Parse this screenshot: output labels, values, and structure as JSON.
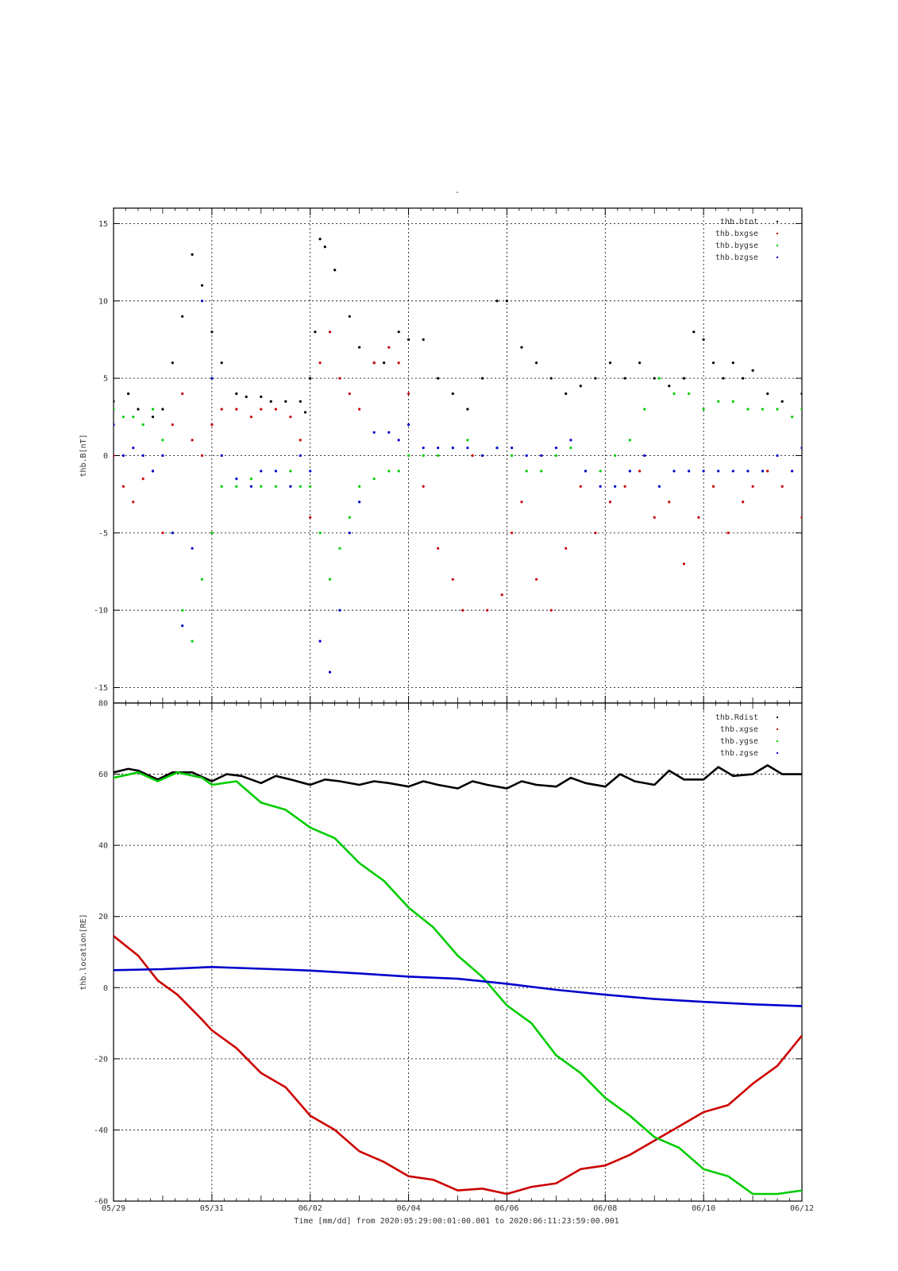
{
  "figure": {
    "title": "-",
    "footer": "Time [mm/dd]  from 2020:05:29:00:01:00.001  to  2020:06:11:23:59:00.001"
  },
  "chart_data": [
    {
      "type": "scatter",
      "ylabel": "thb.B[nT]",
      "xlabel": "",
      "x_ticks": [
        "05/29",
        "05/31",
        "06/02",
        "06/04",
        "06/06",
        "06/08",
        "06/10",
        "06/12"
      ],
      "x_range_days": [
        0,
        14
      ],
      "ylim": [
        -16,
        16
      ],
      "y_ticks": [
        15,
        10,
        5,
        0,
        -5,
        -10,
        -15
      ],
      "grid": true,
      "legend_position": "top-right",
      "colors": {
        "thb.btot": "#000000",
        "thb.bxgse": "#cc0000",
        "thb.bygse": "#00cc00",
        "thb.bzgse": "#0000cc"
      },
      "series": [
        {
          "name": "thb.btot",
          "x": [
            0,
            0.3,
            0.5,
            0.8,
            1.0,
            1.2,
            1.4,
            1.6,
            1.8,
            2.0,
            2.2,
            2.5,
            2.7,
            3.0,
            3.2,
            3.5,
            3.8,
            3.9,
            4.0,
            4.1,
            4.2,
            4.3,
            4.5,
            4.8,
            5.0,
            5.3,
            5.5,
            5.8,
            6.0,
            6.3,
            6.6,
            6.9,
            7.2,
            7.5,
            7.8,
            8.0,
            8.3,
            8.6,
            8.9,
            9.2,
            9.5,
            9.8,
            10.1,
            10.4,
            10.7,
            11.0,
            11.3,
            11.6,
            11.8,
            12.0,
            12.2,
            12.4,
            12.6,
            12.8,
            13.0,
            13.3,
            13.6,
            14.0
          ],
          "y": [
            3.5,
            4,
            3,
            2.5,
            3,
            6,
            9,
            13,
            11,
            8,
            6,
            4,
            3.8,
            3.8,
            3.5,
            3.5,
            3.5,
            2.8,
            5,
            8,
            14,
            13.5,
            12,
            9,
            7,
            6,
            6,
            8,
            7.5,
            7.5,
            5,
            4,
            3,
            5,
            10,
            10,
            7,
            6,
            5,
            4,
            4.5,
            5,
            6,
            5,
            6,
            5,
            4.5,
            5,
            8,
            7.5,
            6,
            5,
            6,
            5,
            5.5,
            4,
            3.5,
            4
          ]
        },
        {
          "name": "thb.bxgse",
          "x": [
            0,
            0.2,
            0.4,
            0.6,
            0.8,
            1.0,
            1.2,
            1.4,
            1.6,
            1.8,
            2.0,
            2.2,
            2.5,
            2.8,
            3.0,
            3.3,
            3.6,
            3.8,
            4.0,
            4.2,
            4.4,
            4.6,
            4.8,
            5.0,
            5.3,
            5.6,
            5.8,
            6.0,
            6.3,
            6.6,
            6.9,
            7.1,
            7.3,
            7.6,
            7.9,
            8.1,
            8.3,
            8.6,
            8.9,
            9.2,
            9.5,
            9.8,
            10.1,
            10.4,
            10.7,
            11.0,
            11.3,
            11.6,
            11.9,
            12.2,
            12.5,
            12.8,
            13.0,
            13.3,
            13.6,
            14.0
          ],
          "y": [
            0,
            -2,
            -3,
            -1.5,
            -1,
            -5,
            2,
            4,
            1,
            0,
            2,
            3,
            3,
            2.5,
            3,
            3,
            2.5,
            1,
            -4,
            6,
            8,
            5,
            4,
            3,
            6,
            7,
            6,
            4,
            -2,
            -6,
            -8,
            -10,
            0,
            -10,
            -9,
            -5,
            -3,
            -8,
            -10,
            -6,
            -2,
            -5,
            -3,
            -2,
            -1,
            -4,
            -3,
            -7,
            -4,
            -2,
            -5,
            -3,
            -2,
            -1,
            -2,
            -4
          ]
        },
        {
          "name": "thb.bygse",
          "x": [
            0,
            0.2,
            0.4,
            0.6,
            0.8,
            1.0,
            1.2,
            1.4,
            1.6,
            1.8,
            2.0,
            2.2,
            2.5,
            2.8,
            3.0,
            3.3,
            3.6,
            3.8,
            4.0,
            4.2,
            4.4,
            4.6,
            4.8,
            5.0,
            5.3,
            5.6,
            5.8,
            6.0,
            6.3,
            6.6,
            6.9,
            7.2,
            7.5,
            7.8,
            8.1,
            8.4,
            8.7,
            9.0,
            9.3,
            9.6,
            9.9,
            10.2,
            10.5,
            10.8,
            11.1,
            11.4,
            11.7,
            12.0,
            12.3,
            12.6,
            12.9,
            13.2,
            13.5,
            13.8,
            14.0
          ],
          "y": [
            3,
            2.5,
            2.5,
            2,
            3,
            1,
            -5,
            -10,
            -12,
            -8,
            -5,
            -2,
            -2,
            -1.5,
            -2,
            -2,
            -1,
            -2,
            -2,
            -5,
            -8,
            -6,
            -4,
            -2,
            -1.5,
            -1,
            -1,
            0,
            0,
            0,
            0.5,
            1,
            0,
            0.5,
            0,
            -1,
            -1,
            0,
            0.5,
            -1,
            -1,
            0,
            1,
            3,
            5,
            4,
            4,
            3,
            3.5,
            3.5,
            3,
            3,
            3,
            2.5,
            3
          ]
        },
        {
          "name": "thb.bzgse",
          "x": [
            0,
            0.2,
            0.4,
            0.6,
            0.8,
            1.0,
            1.2,
            1.4,
            1.6,
            1.8,
            2.0,
            2.2,
            2.5,
            2.8,
            3.0,
            3.3,
            3.6,
            3.8,
            4.0,
            4.2,
            4.4,
            4.6,
            4.8,
            5.0,
            5.3,
            5.6,
            5.8,
            6.0,
            6.3,
            6.6,
            6.9,
            7.2,
            7.5,
            7.8,
            8.1,
            8.4,
            8.7,
            9.0,
            9.3,
            9.6,
            9.9,
            10.2,
            10.5,
            10.8,
            11.1,
            11.4,
            11.7,
            12.0,
            12.3,
            12.6,
            12.9,
            13.2,
            13.5,
            13.8,
            14.0
          ],
          "y": [
            2,
            0,
            0.5,
            0,
            -1,
            0,
            -5,
            -11,
            -6,
            10,
            5,
            0,
            -1.5,
            -2,
            -1,
            -1,
            -2,
            0,
            -1,
            -12,
            -14,
            -10,
            -5,
            -3,
            1.5,
            1.5,
            1,
            2,
            0.5,
            0.5,
            0.5,
            0.5,
            0,
            0.5,
            0.5,
            0,
            0,
            0.5,
            1,
            -1,
            -2,
            -2,
            -1,
            0,
            -2,
            -1,
            -1,
            -1,
            -1,
            -1,
            -1,
            -1,
            0,
            -1,
            0.5
          ]
        }
      ]
    },
    {
      "type": "line",
      "ylabel": "thb.location[RE]",
      "xlabel": "Time [mm/dd]",
      "x_ticks": [
        "05/29",
        "05/31",
        "06/02",
        "06/04",
        "06/06",
        "06/08",
        "06/10",
        "06/12"
      ],
      "x_range_days": [
        0,
        14
      ],
      "ylim": [
        -60,
        80
      ],
      "y_ticks": [
        80,
        60,
        40,
        20,
        0,
        -20,
        -40,
        -60
      ],
      "grid": true,
      "legend_position": "top-right",
      "colors": {
        "thb.Rdist": "#000000",
        "thb.xgse": "#cc0000",
        "thb.ygse": "#00cc00",
        "thb.zgse": "#0000cc"
      },
      "series": [
        {
          "name": "thb.Rdist",
          "x": [
            0,
            0.3,
            0.5,
            0.9,
            1.2,
            1.6,
            2.0,
            2.3,
            2.6,
            3.0,
            3.3,
            3.6,
            4.0,
            4.3,
            4.6,
            5.0,
            5.3,
            5.6,
            6.0,
            6.3,
            6.6,
            7.0,
            7.3,
            7.6,
            8.0,
            8.3,
            8.6,
            9.0,
            9.3,
            9.6,
            10.0,
            10.3,
            10.6,
            11.0,
            11.3,
            11.6,
            12.0,
            12.3,
            12.6,
            13.0,
            13.3,
            13.6,
            14.0
          ],
          "y": [
            60.5,
            61.5,
            61,
            58.5,
            60.5,
            60.5,
            58,
            60,
            59.5,
            57.5,
            59.5,
            58.5,
            57,
            58.5,
            58,
            57,
            58,
            57.5,
            56.5,
            58,
            57,
            56,
            58,
            57,
            56,
            58,
            57,
            56.5,
            59,
            57.5,
            56.5,
            60,
            58,
            57,
            61,
            58.5,
            58.5,
            62,
            59.5,
            60,
            62.5,
            60,
            60
          ]
        },
        {
          "name": "thb.xgse",
          "x": [
            0,
            0.5,
            0.9,
            1.3,
            1.8,
            2.0,
            2.5,
            3.0,
            3.5,
            4.0,
            4.5,
            5.0,
            5.5,
            6.0,
            6.5,
            7.0,
            7.5,
            8.0,
            8.5,
            9.0,
            9.5,
            10.0,
            10.5,
            11.0,
            11.5,
            12.0,
            12.5,
            13.0,
            13.5,
            14.0
          ],
          "y": [
            14.5,
            9,
            2,
            -2,
            -9,
            -12,
            -17,
            -24,
            -28,
            -36,
            -40,
            -46,
            -49,
            -53,
            -54,
            -57,
            -56.5,
            -58,
            -56,
            -55,
            -51,
            -50,
            -47,
            -43,
            -39,
            -35,
            -33,
            -27,
            -22,
            -13.5
          ]
        },
        {
          "name": "thb.ygse",
          "x": [
            0,
            0.5,
            0.9,
            1.3,
            1.8,
            2.0,
            2.5,
            3.0,
            3.5,
            4.0,
            4.5,
            5.0,
            5.5,
            6.0,
            6.5,
            7.0,
            7.5,
            8.0,
            8.5,
            9.0,
            9.5,
            10.0,
            10.5,
            11.0,
            11.5,
            12.0,
            12.5,
            13.0,
            13.5,
            14.0
          ],
          "y": [
            59,
            60.5,
            58,
            60.5,
            59,
            57,
            58,
            52,
            50,
            45,
            42,
            35,
            30,
            22.5,
            17,
            9,
            3,
            -5,
            -10,
            -19,
            -24,
            -31,
            -36,
            -42,
            -45,
            -51,
            -53,
            -58,
            -58,
            -57
          ]
        },
        {
          "name": "thb.zgse",
          "x": [
            0,
            1,
            2,
            3,
            4,
            5,
            6,
            7,
            8,
            9,
            10,
            11,
            12,
            13,
            14
          ],
          "y": [
            4.9,
            5.2,
            5.8,
            5.3,
            4.8,
            4,
            3.1,
            2.5,
            1.1,
            -0.6,
            -2,
            -3.2,
            -4,
            -4.7,
            -5.2
          ]
        }
      ]
    }
  ]
}
